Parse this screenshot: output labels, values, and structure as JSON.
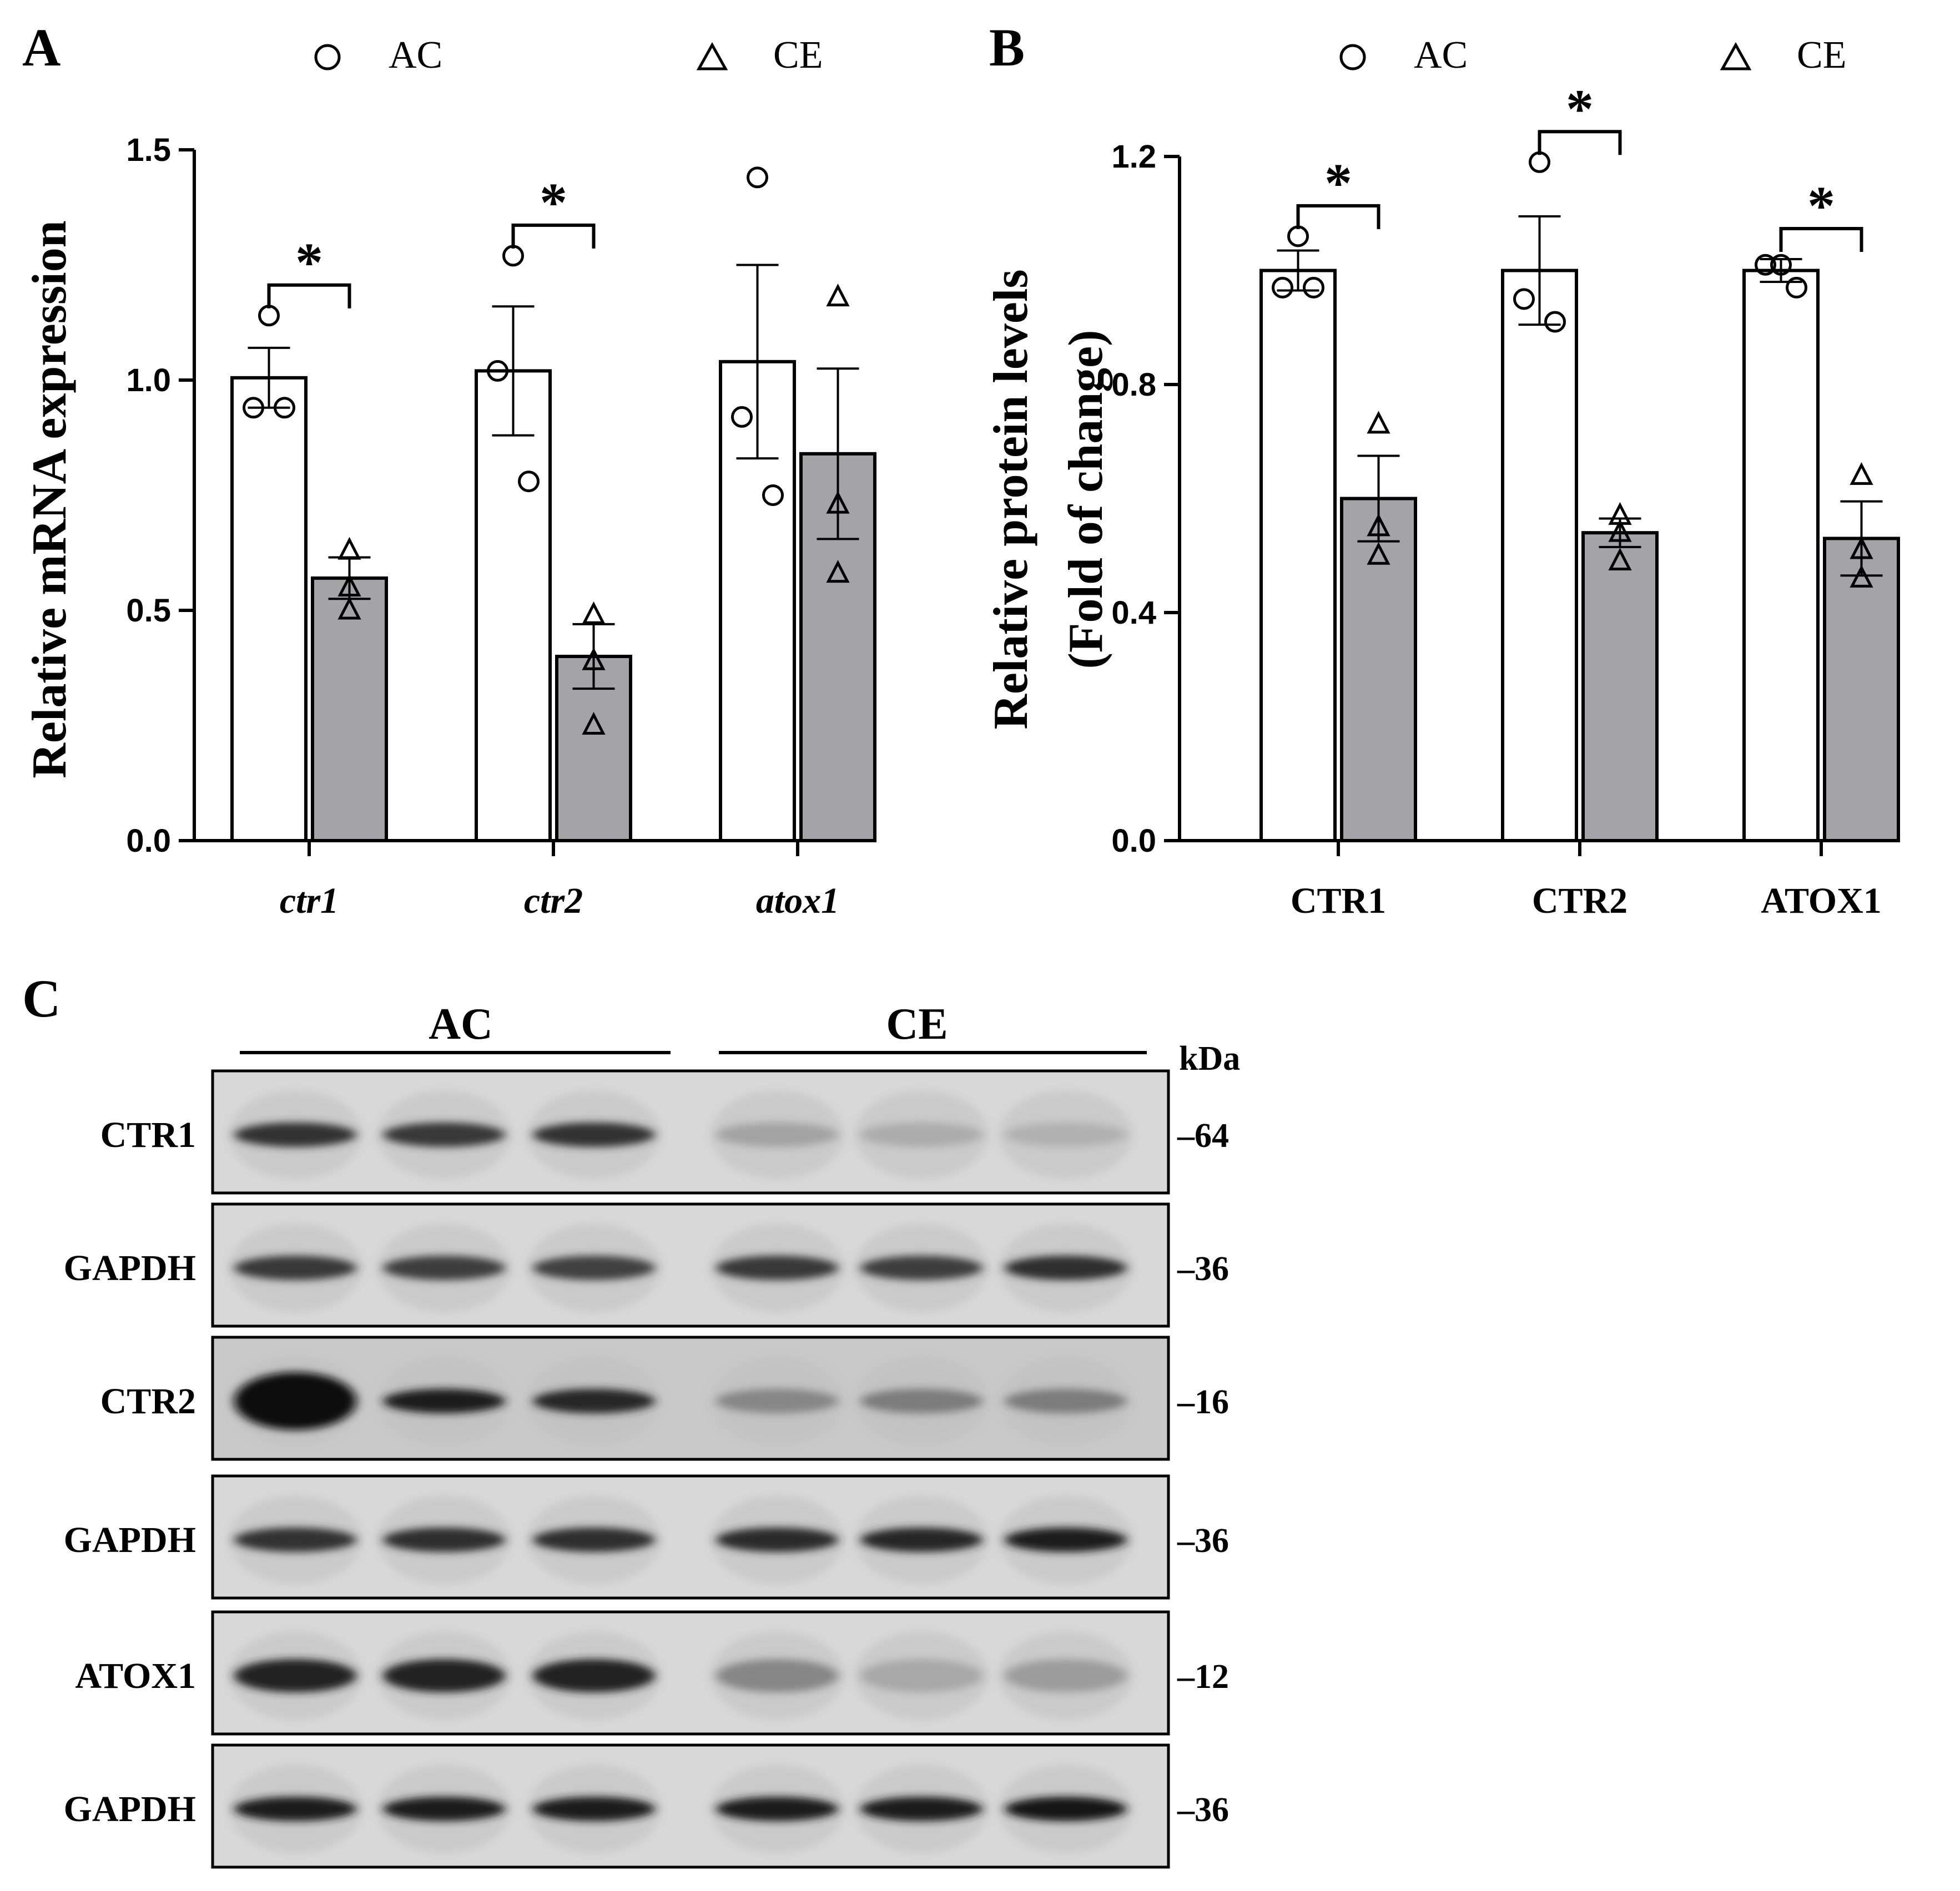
{
  "panels": {
    "a": "A",
    "b": "B",
    "c": "C"
  },
  "legend": {
    "ac": "AC",
    "ce": "CE"
  },
  "colors": {
    "ac_fill": "#ffffff",
    "ce_fill": "#a4a4a8",
    "stroke": "#000000"
  },
  "significance_mark": "*",
  "chart_data": [
    {
      "type": "bar",
      "ylabel": "Relative mRNA expression",
      "ylim": [
        0,
        1.5
      ],
      "yticks": [
        "0.0",
        "0.5",
        "1.0",
        "1.5"
      ],
      "categories": [
        "ctr1",
        "ctr2",
        "atox1"
      ],
      "category_style": "italic",
      "series": [
        {
          "name": "AC",
          "marker": "circle",
          "values": [
            1.005,
            1.02,
            1.04
          ],
          "sem": [
            0.065,
            0.14,
            0.21
          ],
          "points": [
            [
              1.14,
              0.94,
              0.94
            ],
            [
              1.27,
              1.02,
              0.78
            ],
            [
              1.44,
              0.92,
              0.75
            ]
          ]
        },
        {
          "name": "CE",
          "marker": "triangle",
          "values": [
            0.57,
            0.4,
            0.84
          ],
          "sem": [
            0.045,
            0.07,
            0.185
          ],
          "points": [
            [
              0.63,
              0.55,
              0.5
            ],
            [
              0.49,
              0.39,
              0.25
            ],
            [
              1.18,
              0.73,
              0.58
            ]
          ]
        }
      ],
      "significant": [
        true,
        true,
        false
      ]
    },
    {
      "type": "bar",
      "ylabel": "Relative protein levels",
      "ylabel2": "(Fold of change)",
      "ylim": [
        0,
        1.2
      ],
      "yticks": [
        "0.0",
        "0.4",
        "0.8",
        "1.2"
      ],
      "categories": [
        "CTR1",
        "CTR2",
        "ATOX1"
      ],
      "category_style": "normal",
      "series": [
        {
          "name": "AC",
          "marker": "circle",
          "values": [
            1.0,
            1.0,
            1.0
          ],
          "sem": [
            0.035,
            0.095,
            0.02
          ],
          "points": [
            [
              1.06,
              0.97,
              0.97
            ],
            [
              1.19,
              0.95,
              0.91
            ],
            [
              1.01,
              1.01,
              0.97
            ]
          ]
        },
        {
          "name": "CE",
          "marker": "triangle",
          "values": [
            0.6,
            0.54,
            0.53
          ],
          "sem": [
            0.075,
            0.025,
            0.065
          ],
          "points": [
            [
              0.73,
              0.55,
              0.5
            ],
            [
              0.57,
              0.54,
              0.49
            ],
            [
              0.64,
              0.51,
              0.46
            ]
          ]
        }
      ],
      "significant": [
        true,
        true,
        true
      ]
    }
  ],
  "blot": {
    "groups": [
      "AC",
      "CE"
    ],
    "unit": "kDa",
    "rows": [
      {
        "label": "CTR1",
        "kda": "–64",
        "intensity": [
          0.82,
          0.8,
          0.82,
          0.32,
          0.28,
          0.26
        ]
      },
      {
        "label": "GAPDH",
        "kda": "–36",
        "intensity": [
          0.8,
          0.78,
          0.76,
          0.8,
          0.78,
          0.84
        ]
      },
      {
        "label": "CTR2",
        "kda": "–16",
        "intensity": [
          1.0,
          0.92,
          0.88,
          0.45,
          0.5,
          0.5
        ]
      },
      {
        "label": "GAPDH",
        "kda": "–36",
        "intensity": [
          0.82,
          0.84,
          0.84,
          0.86,
          0.88,
          0.92
        ]
      },
      {
        "label": "ATOX1",
        "kda": "–12",
        "intensity": [
          0.9,
          0.9,
          0.9,
          0.45,
          0.3,
          0.35
        ]
      },
      {
        "label": "GAPDH",
        "kda": "–36",
        "intensity": [
          0.92,
          0.92,
          0.92,
          0.92,
          0.92,
          0.94
        ]
      }
    ]
  }
}
